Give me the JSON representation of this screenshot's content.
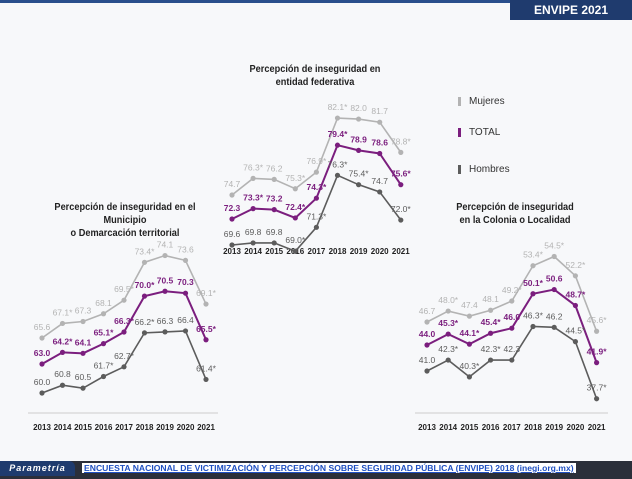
{
  "header": {
    "badge": "ENVIPE 2021"
  },
  "legend": [
    {
      "label": "Mujeres",
      "color": "#b3b3b3"
    },
    {
      "label": "TOTAL",
      "color": "#7b1e7e"
    },
    {
      "label": "Hombres",
      "color": "#5c5c5c"
    }
  ],
  "footer": {
    "brand": "Parametría",
    "source": "ENCUESTA NACIONAL DE VICTIMIZACIÓN Y PERCEPCIÓN SOBRE SEGURIDAD PÚBLICA (ENVIPE) 2018 (inegi.org.mx)"
  },
  "chart_data": [
    {
      "type": "line",
      "title": "Percepción de inseguridad en el  Municipio o Demarcación territorial",
      "title_lines": [
        "Percepción de inseguridad en el  Municipio",
        "o Demarcación territorial"
      ],
      "categories": [
        "2013",
        "2014",
        "2015",
        "2016",
        "2017",
        "2018",
        "2019",
        "2020",
        "2021"
      ],
      "series": [
        {
          "name": "Mujeres",
          "values": [
            65.6,
            67.1,
            67.3,
            68.1,
            69.5,
            73.4,
            74.1,
            73.6,
            69.1
          ],
          "labels": [
            "65.6",
            "67.1*",
            "67.3",
            "68.1",
            "69.5*",
            "73.4*",
            "74.1",
            "73.6",
            "69.1*"
          ]
        },
        {
          "name": "TOTAL",
          "values": [
            63.0,
            64.2,
            64.1,
            65.1,
            66.3,
            70.0,
            70.5,
            70.3,
            65.5
          ],
          "labels": [
            "63.0",
            "64.2*",
            "64.1",
            "65.1*",
            "66.3*",
            "70.0*",
            "70.5",
            "70.3",
            "65.5*"
          ]
        },
        {
          "name": "Hombres",
          "values": [
            60.0,
            60.8,
            60.5,
            61.7,
            62.7,
            66.2,
            66.3,
            66.4,
            61.4
          ],
          "labels": [
            "60.0",
            "60.8",
            "60.5",
            "61.7*",
            "62.7*",
            "66.2*",
            "66.3",
            "66.4",
            "61.4*"
          ]
        }
      ]
    },
    {
      "type": "line",
      "title": "Percepción de inseguridad en entidad federativa",
      "title_lines": [
        "Percepción de inseguridad en",
        "entidad federativa"
      ],
      "categories": [
        "2013",
        "2014",
        "2015",
        "2016",
        "2017",
        "2018",
        "2019",
        "2020",
        "2021"
      ],
      "series": [
        {
          "name": "Mujeres",
          "values": [
            74.7,
            76.3,
            76.2,
            75.3,
            76.9,
            82.1,
            82.0,
            81.7,
            78.8
          ],
          "labels": [
            "74.7",
            "76.3*",
            "76.2",
            "75.3*",
            "76.9*",
            "82.1*",
            "82.0",
            "81.7",
            "78.8*"
          ]
        },
        {
          "name": "TOTAL",
          "values": [
            72.3,
            73.3,
            73.2,
            72.4,
            74.3,
            79.4,
            78.9,
            78.6,
            75.6
          ],
          "labels": [
            "72.3",
            "73.3*",
            "73.2",
            "72.4*",
            "74.3*",
            "79.4*",
            "78.9",
            "78.6",
            "75.6*"
          ]
        },
        {
          "name": "Hombres",
          "values": [
            69.6,
            69.8,
            69.8,
            69.0,
            71.3,
            76.3,
            75.4,
            74.7,
            72.0
          ],
          "labels": [
            "69.6",
            "69.8",
            "69.8",
            "69.0*",
            "71.3*",
            "76.3*",
            "75.4*",
            "74.7",
            "72.0*"
          ]
        }
      ]
    },
    {
      "type": "line",
      "title": "Percepción de inseguridad en la Colonia o Localidad",
      "title_lines": [
        "Percepción de inseguridad",
        "en la Colonia o Localidad"
      ],
      "categories": [
        "2013",
        "2014",
        "2015",
        "2016",
        "2017",
        "2018",
        "2019",
        "2020",
        "2021"
      ],
      "series": [
        {
          "name": "Mujeres",
          "values": [
            46.7,
            48.0,
            47.4,
            48.1,
            49.2,
            53.4,
            54.5,
            52.2,
            45.6
          ],
          "labels": [
            "46.7",
            "48.0*",
            "47.4",
            "48.1",
            "49.2*",
            "53.4*",
            "54.5*",
            "52.2*",
            "45.6*"
          ]
        },
        {
          "name": "TOTAL",
          "values": [
            44.0,
            45.3,
            44.1,
            45.4,
            46.0,
            50.1,
            50.6,
            48.7,
            41.9
          ],
          "labels": [
            "44.0",
            "45.3*",
            "44.1*",
            "45.4*",
            "46.0",
            "50.1*",
            "50.6",
            "48.7*",
            "41.9*"
          ]
        },
        {
          "name": "Hombres",
          "values": [
            41.0,
            42.3,
            40.3,
            42.3,
            42.3,
            46.3,
            46.2,
            44.5,
            37.7
          ],
          "labels": [
            "41.0",
            "42.3*",
            "40.3*",
            "42.3*",
            "42.3",
            "46.3*",
            "46.2",
            "44.5*",
            "37.7*"
          ]
        }
      ]
    }
  ]
}
